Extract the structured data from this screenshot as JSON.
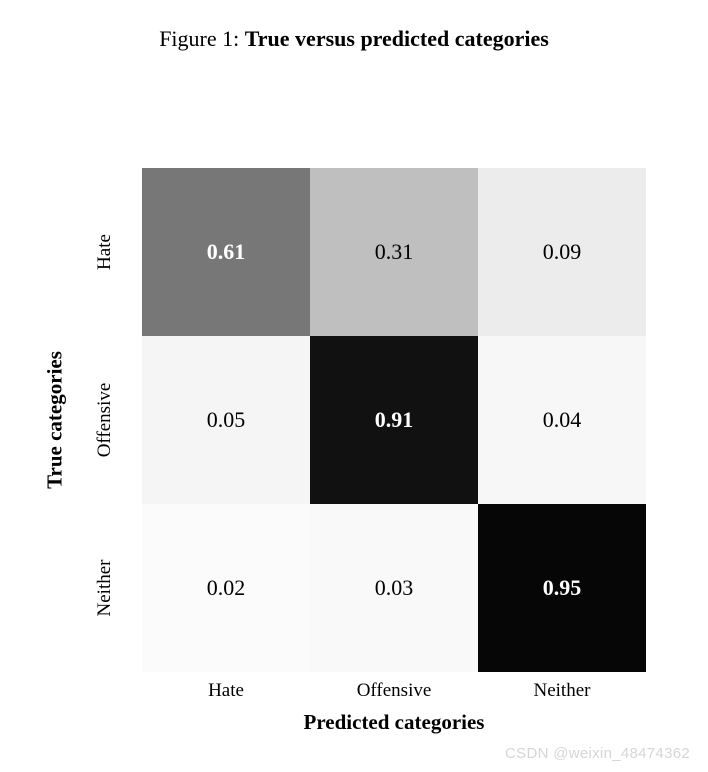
{
  "figure": {
    "caption_prefix": "Figure 1: ",
    "caption_title": "True versus predicted categories",
    "type": "heatmap",
    "xlabel": "Predicted categories",
    "ylabel": "True categories",
    "x_categories": [
      "Hate",
      "Offensive",
      "Neither"
    ],
    "y_categories": [
      "Hate",
      "Offensive",
      "Neither"
    ],
    "values": [
      [
        0.61,
        0.31,
        0.09
      ],
      [
        0.05,
        0.91,
        0.04
      ],
      [
        0.02,
        0.03,
        0.95
      ]
    ],
    "cell_value_strings": [
      [
        "0.61",
        "0.31",
        "0.09"
      ],
      [
        "0.05",
        "0.91",
        "0.04"
      ],
      [
        "0.02",
        "0.03",
        "0.95"
      ]
    ],
    "cell_colors": [
      [
        "#777777",
        "#bfbfbf",
        "#ececec"
      ],
      [
        "#f5f5f5",
        "#111111",
        "#f7f7f7"
      ],
      [
        "#fbfbfb",
        "#f9f9f9",
        "#060606"
      ]
    ],
    "cell_text_colors": [
      [
        "#ffffff",
        "#000000",
        "#000000"
      ],
      [
        "#000000",
        "#ffffff",
        "#000000"
      ],
      [
        "#000000",
        "#000000",
        "#ffffff"
      ]
    ],
    "cell_text_weights": [
      [
        "bold",
        "normal",
        "normal"
      ],
      [
        "normal",
        "bold",
        "normal"
      ],
      [
        "normal",
        "normal",
        "bold"
      ]
    ],
    "value_fontsize": 22,
    "tick_fontsize": 19,
    "label_fontsize": 21,
    "title_fontsize": 22,
    "background_color": "#ffffff",
    "value_range": [
      0,
      1
    ]
  },
  "watermark": "CSDN @weixin_48474362"
}
